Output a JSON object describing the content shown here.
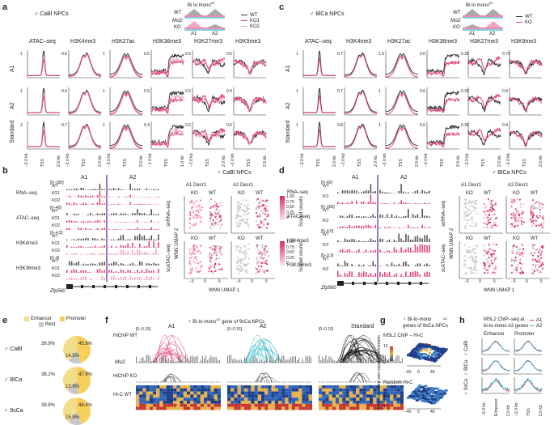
{
  "colors": {
    "wt": "#333333",
    "ko1": "#e0457b",
    "ko2": "#f4a7c2",
    "a1": "#e0457b",
    "a2": "#36b9cc",
    "purple": "#7b4aa8",
    "enhancer": "#f2de8a",
    "promoter": "#f6cf5a",
    "rest": "#c8c8c8"
  },
  "panel_a": {
    "letter": "a",
    "title": "♂ CaBl NPCs",
    "schematic_title": "Bi to mono",
    "schematic_sup": "A1",
    "wt_label": "WT",
    "msl2_label": "Msl2",
    "ko_label": "KO",
    "a1_label": "A1",
    "a2_label": "A2",
    "legend": [
      "WT",
      "KO1",
      "KO2"
    ],
    "columns": [
      "ATAC–seq",
      "H3K4me3",
      "H3K27ac",
      "H3K36me3",
      "H3K27me3",
      "H3K9me3"
    ],
    "rows": [
      "A1",
      "A2",
      "Standard"
    ],
    "yticks": [
      [
        "1",
        "0.6",
        "1",
        "0.5",
        "0.6",
        "0.5"
      ],
      [
        "1",
        "0.4",
        "1",
        "0.5",
        "0.5",
        "0.4"
      ],
      [
        "2",
        "0.7",
        "1",
        "0.4",
        "0.5",
        "0.5"
      ]
    ],
    "xticks": [
      "−2.0 kb",
      "TSS",
      "2.0 kb"
    ],
    "xticks_h3k36": [
      "−1.0 kb",
      "TSS",
      "1.0 kb"
    ]
  },
  "panel_c": {
    "letter": "c",
    "title": "♂ BlCa NPCs",
    "schematic_title": "Bi to mono",
    "schematic_sup": "A2",
    "wt_label": "WT",
    "msl2_label": "Msl2",
    "ko_label": "KO",
    "a1_label": "A1",
    "a2_label": "A2",
    "legend": [
      "WT",
      "KO"
    ],
    "columns": [
      "ATAC–seq",
      "H3K4me3",
      "H3K27ac",
      "H3K36me3",
      "H3K27me3",
      "H3K9me3"
    ],
    "rows": [
      "A1",
      "A2",
      "Standard"
    ],
    "yticks": [
      [
        "1",
        "0.7",
        "1.5",
        "0.6",
        "0.35",
        "0.75"
      ],
      [
        "1",
        "0.7",
        "1",
        "0.6",
        "0.35",
        "0.9"
      ],
      [
        "1",
        "0.8",
        "1",
        "0.6",
        "0.35",
        "0.4"
      ]
    ],
    "xticks": [
      "−2.0 kb",
      "TSS",
      "2.0 kb"
    ]
  },
  "panel_b": {
    "letter": "b",
    "tracks": [
      {
        "name": "RNA–seq",
        "range": "[0–180]",
        "samples": [
          "WT",
          "KO1",
          "KO2"
        ]
      },
      {
        "name": "ATAC–seq",
        "range": "[0–40]",
        "samples": [
          "WT",
          "KO1",
          "KO2"
        ]
      },
      {
        "name": "H3K4me3",
        "range": "[0–4.5]",
        "samples": [
          "WT",
          "KO1",
          "KO2"
        ]
      },
      {
        "name": "H3K36me3",
        "range": "[0–4]",
        "samples": [
          "WT",
          "KO1",
          "KO2"
        ]
      }
    ],
    "allele_a1": "A1",
    "allele_a2": "A2",
    "gene": "Zfp560",
    "umap_title": "♂ CaBl NPCs",
    "umap_a1": "A1",
    "umap_a2": "A2",
    "umap_gene": "Decr1",
    "umap_labels": [
      "KO",
      "WT",
      "KO",
      "WT"
    ],
    "snrna": "snRNA–seq",
    "snatac": "scATAC–seq",
    "ylabel": "WNN UMAP 2",
    "xlabel": "WNN UMAP 1",
    "xticks": [
      "−5",
      "0",
      "5"
    ],
    "legend_vals": [
      "1.00",
      "0.75",
      "0.50",
      "0.25",
      "0"
    ],
    "legend_title": "Scaled counts"
  },
  "panel_d": {
    "letter": "d",
    "tracks": [
      {
        "name": "RNA–seq",
        "range": "[0–60]",
        "samples": [
          "WT",
          "KO"
        ]
      },
      {
        "name": "ATAC–seq",
        "range": "[0–200]",
        "samples": [
          "WT",
          "KO"
        ]
      },
      {
        "name": "H3K4me3",
        "range": "[0–4.5]",
        "samples": [
          "WT",
          "KO"
        ]
      },
      {
        "name": "H3K36me3",
        "range": "[0–3.3]",
        "samples": [
          "WT",
          "KO"
        ]
      }
    ],
    "allele_a1": "A1",
    "allele_a2": "A2",
    "gene": "Zfp560",
    "umap_title": "♂ BlCa NPCs",
    "umap_a1": "A1",
    "umap_a2": "A2",
    "umap_gene": "Decr1",
    "umap_labels": [
      "KO",
      "WT",
      "KO",
      "WT"
    ],
    "snrna": "snRNA–seq",
    "snatac": "scATAC–seq",
    "ylabel": "WNN UMAP 2",
    "xlabel": "WNN UMAP 1",
    "xticks": [
      "−5",
      "0",
      "5"
    ],
    "legend_vals": [
      "1.00",
      "0.75",
      "0.50",
      "0.25",
      "0"
    ],
    "legend_title": "Scaled counts"
  },
  "panel_e": {
    "letter": "e",
    "legend": [
      "Enhancer",
      "Promoter",
      "Rest"
    ],
    "chart_data": {
      "type": "pie",
      "charts": [
        {
          "name": "♂ CaBl",
          "enhancer": 39.9,
          "promoter": 45.6,
          "rest": 14.5,
          "labels": [
            "39.9%",
            "45.6%",
            "14.5%"
          ]
        },
        {
          "name": "♂ BlCa",
          "enhancer": 38.2,
          "promoter": 47.9,
          "rest": 13.9,
          "labels": [
            "38.2%",
            "47.9%",
            "13.9%"
          ]
        },
        {
          "name": "♀ 9sCa",
          "enhancer": 39.8,
          "promoter": 44.4,
          "rest": 15.8,
          "labels": [
            "39.8%",
            "44.4%",
            "15.8%"
          ]
        }
      ]
    }
  },
  "panel_f": {
    "letter": "f",
    "title": "♀ Bi-to-mono",
    "title_sup": "A2",
    "title_rest": "gene of 9sCa NPCs",
    "cols": [
      "A1",
      "A2",
      "Standard"
    ],
    "hichip_wt": "HiChIP WT",
    "hichip_ko": "HiChIP KO",
    "msl2": "Msl2",
    "hic": "Hi-C WT",
    "range": "[0–0.15]",
    "scale": [
      "20",
      "5"
    ]
  },
  "panel_g": {
    "letter": "g",
    "title_1": "♀ Bi-to-mono",
    "title_sup": "A2",
    "title_2": "genes of 9sCa NPCs",
    "top_label": "MSL2 ChIP – Hi-C",
    "bottom_label": "Random Hi-C",
    "ylabel": "Mean observed over expected chromatin contacts",
    "scale": [
      "12",
      "0"
    ],
    "ticks": [
      "−40",
      "0",
      "40"
    ]
  },
  "panel_h": {
    "letter": "h",
    "title_1": "MSL2 ChIP–seq at",
    "title_2": "bi-to-mono",
    "title_sup": "A2",
    "title_3": "genes",
    "legend": [
      "A1",
      "A2"
    ],
    "cols": [
      "Enhancer",
      "Promoter"
    ],
    "rows": [
      "♂ CaBl",
      "♂ BlCa",
      "♀ 9sCa"
    ],
    "xticks_enh": [
      "−2.0 kb",
      "Enhancer",
      "2.0 kb"
    ],
    "xticks_pro": [
      "−2.0 kb",
      "TSS",
      "2.0 kb"
    ]
  }
}
